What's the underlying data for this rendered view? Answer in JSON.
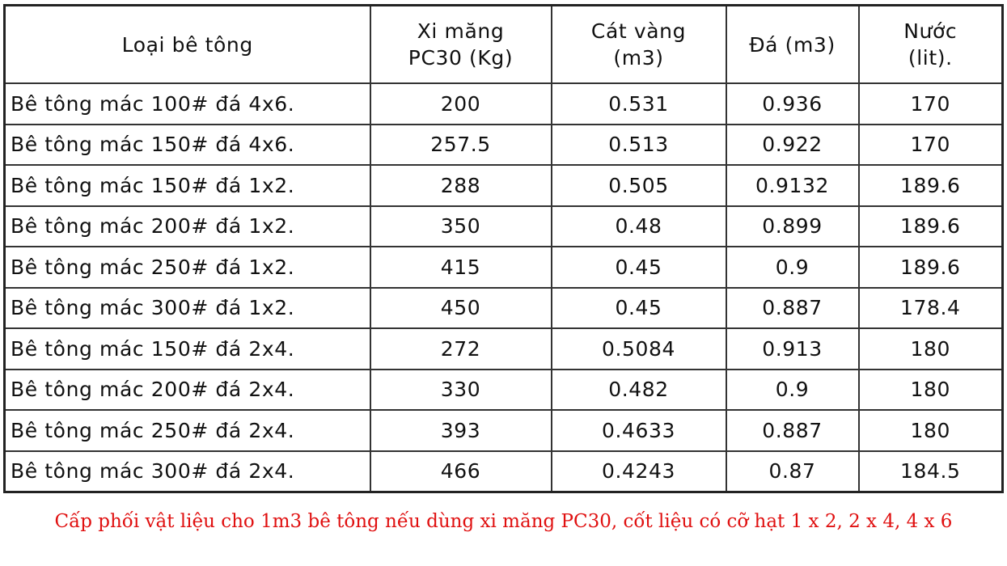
{
  "table": {
    "headers": [
      {
        "line1": "Loại bê tông",
        "line2": ""
      },
      {
        "line1": "Xi măng",
        "line2": "PC30 (Kg)"
      },
      {
        "line1": "Cát vàng",
        "line2": "(m3)"
      },
      {
        "line1": "Đá (m3)",
        "line2": ""
      },
      {
        "line1": "Nước",
        "line2": "(lit)."
      }
    ],
    "rows": [
      [
        "Bê tông mác 100# đá 4x6.",
        "200",
        "0.531",
        "0.936",
        "170"
      ],
      [
        "Bê tông mác 150# đá 4x6.",
        "257.5",
        "0.513",
        "0.922",
        "170"
      ],
      [
        "Bê tông mác 150# đá 1x2.",
        "288",
        "0.505",
        "0.9132",
        "189.6"
      ],
      [
        "Bê tông mác 200# đá 1x2.",
        "350",
        "0.48",
        "0.899",
        "189.6"
      ],
      [
        "Bê tông mác 250# đá 1x2.",
        "415",
        "0.45",
        "0.9",
        "189.6"
      ],
      [
        "Bê tông mác 300# đá 1x2.",
        "450",
        "0.45",
        "0.887",
        "178.4"
      ],
      [
        "Bê tông mác 150# đá 2x4.",
        "272",
        "0.5084",
        "0.913",
        "180"
      ],
      [
        "Bê tông mác 200# đá 2x4.",
        "330",
        "0.482",
        "0.9",
        "180"
      ],
      [
        "Bê tông mác 250# đá 2x4.",
        "393",
        "0.4633",
        "0.887",
        "180"
      ],
      [
        "Bê tông mác 300# đá 2x4.",
        "466",
        "0.4243",
        "0.87",
        "184.5"
      ]
    ]
  },
  "caption": "Cấp phối vật liệu cho 1m3 bê tông nếu dùng xi măng PC30,  cốt liệu có cỡ hạt 1 x 2, 2 x 4, 4 x 6",
  "colors": {
    "caption": "#e01010",
    "border": "#333333",
    "text": "#111111"
  }
}
